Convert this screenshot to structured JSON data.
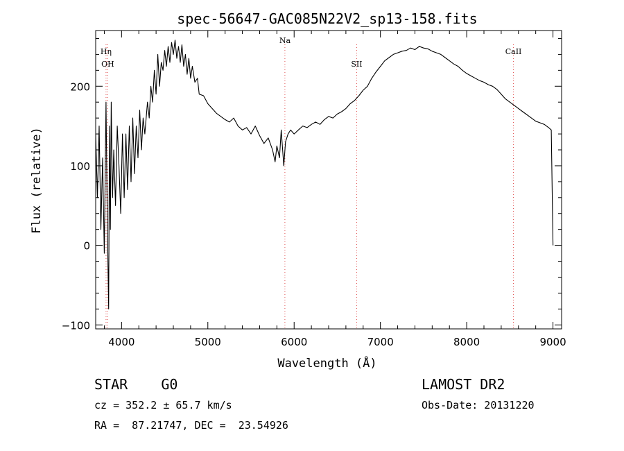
{
  "chart_data": {
    "type": "line",
    "title": "spec-56647-GAC085N22V2_sp13-158.fits",
    "xlabel": "Wavelength (Å)",
    "ylabel": "Flux (relative)",
    "xlim": [
      3700,
      9100
    ],
    "ylim": [
      -105,
      270
    ],
    "xticks": [
      4000,
      5000,
      6000,
      7000,
      8000,
      9000
    ],
    "xtick_labels": [
      "4000",
      "5000",
      "6000",
      "7000",
      "8000",
      "9000"
    ],
    "yticks": [
      -100,
      0,
      100,
      200
    ],
    "ytick_labels": [
      "−100",
      "0",
      "100",
      "200"
    ],
    "grid": false,
    "series": [
      {
        "points": [
          [
            3700,
            140
          ],
          [
            3720,
            60
          ],
          [
            3740,
            150
          ],
          [
            3760,
            20
          ],
          [
            3780,
            110
          ],
          [
            3800,
            -10
          ],
          [
            3820,
            180
          ],
          [
            3835,
            30
          ],
          [
            3850,
            -80
          ],
          [
            3860,
            150
          ],
          [
            3870,
            20
          ],
          [
            3880,
            180
          ],
          [
            3895,
            60
          ],
          [
            3910,
            120
          ],
          [
            3930,
            50
          ],
          [
            3950,
            150
          ],
          [
            3970,
            100
          ],
          [
            3990,
            40
          ],
          [
            4010,
            140
          ],
          [
            4030,
            60
          ],
          [
            4050,
            140
          ],
          [
            4070,
            70
          ],
          [
            4090,
            150
          ],
          [
            4110,
            80
          ],
          [
            4130,
            160
          ],
          [
            4150,
            90
          ],
          [
            4170,
            150
          ],
          [
            4190,
            110
          ],
          [
            4210,
            170
          ],
          [
            4230,
            120
          ],
          [
            4250,
            160
          ],
          [
            4270,
            140
          ],
          [
            4300,
            180
          ],
          [
            4320,
            160
          ],
          [
            4340,
            200
          ],
          [
            4360,
            180
          ],
          [
            4380,
            220
          ],
          [
            4400,
            190
          ],
          [
            4420,
            240
          ],
          [
            4440,
            200
          ],
          [
            4460,
            230
          ],
          [
            4480,
            220
          ],
          [
            4500,
            245
          ],
          [
            4520,
            225
          ],
          [
            4540,
            250
          ],
          [
            4560,
            230
          ],
          [
            4580,
            255
          ],
          [
            4600,
            240
          ],
          [
            4620,
            258
          ],
          [
            4640,
            235
          ],
          [
            4660,
            250
          ],
          [
            4680,
            230
          ],
          [
            4700,
            252
          ],
          [
            4720,
            225
          ],
          [
            4740,
            240
          ],
          [
            4760,
            215
          ],
          [
            4780,
            235
          ],
          [
            4800,
            210
          ],
          [
            4820,
            225
          ],
          [
            4850,
            205
          ],
          [
            4880,
            210
          ],
          [
            4900,
            190
          ],
          [
            4950,
            188
          ],
          [
            5000,
            178
          ],
          [
            5050,
            172
          ],
          [
            5100,
            166
          ],
          [
            5150,
            162
          ],
          [
            5200,
            158
          ],
          [
            5250,
            155
          ],
          [
            5300,
            160
          ],
          [
            5350,
            150
          ],
          [
            5400,
            145
          ],
          [
            5450,
            148
          ],
          [
            5500,
            140
          ],
          [
            5550,
            150
          ],
          [
            5600,
            138
          ],
          [
            5650,
            128
          ],
          [
            5700,
            135
          ],
          [
            5750,
            120
          ],
          [
            5780,
            105
          ],
          [
            5800,
            125
          ],
          [
            5830,
            110
          ],
          [
            5850,
            145
          ],
          [
            5880,
            100
          ],
          [
            5900,
            130
          ],
          [
            5930,
            140
          ],
          [
            5960,
            145
          ],
          [
            6000,
            140
          ],
          [
            6050,
            145
          ],
          [
            6100,
            150
          ],
          [
            6150,
            148
          ],
          [
            6200,
            152
          ],
          [
            6250,
            155
          ],
          [
            6300,
            152
          ],
          [
            6350,
            158
          ],
          [
            6400,
            162
          ],
          [
            6450,
            160
          ],
          [
            6500,
            165
          ],
          [
            6550,
            168
          ],
          [
            6600,
            172
          ],
          [
            6650,
            178
          ],
          [
            6700,
            182
          ],
          [
            6750,
            188
          ],
          [
            6800,
            195
          ],
          [
            6850,
            200
          ],
          [
            6900,
            210
          ],
          [
            6950,
            218
          ],
          [
            7000,
            225
          ],
          [
            7050,
            232
          ],
          [
            7100,
            236
          ],
          [
            7150,
            240
          ],
          [
            7200,
            242
          ],
          [
            7250,
            244
          ],
          [
            7300,
            245
          ],
          [
            7350,
            248
          ],
          [
            7400,
            246
          ],
          [
            7450,
            250
          ],
          [
            7500,
            248
          ],
          [
            7550,
            247
          ],
          [
            7600,
            244
          ],
          [
            7650,
            242
          ],
          [
            7700,
            240
          ],
          [
            7750,
            236
          ],
          [
            7800,
            232
          ],
          [
            7850,
            228
          ],
          [
            7900,
            225
          ],
          [
            7950,
            220
          ],
          [
            8000,
            216
          ],
          [
            8050,
            213
          ],
          [
            8100,
            210
          ],
          [
            8150,
            207
          ],
          [
            8200,
            205
          ],
          [
            8250,
            202
          ],
          [
            8300,
            200
          ],
          [
            8350,
            196
          ],
          [
            8400,
            190
          ],
          [
            8450,
            184
          ],
          [
            8500,
            180
          ],
          [
            8550,
            176
          ],
          [
            8600,
            172
          ],
          [
            8650,
            168
          ],
          [
            8700,
            164
          ],
          [
            8750,
            160
          ],
          [
            8800,
            156
          ],
          [
            8850,
            154
          ],
          [
            8900,
            152
          ],
          [
            8950,
            148
          ],
          [
            8980,
            145
          ],
          [
            9000,
            0
          ]
        ]
      }
    ],
    "lines": [
      {
        "x": 3820,
        "label": "Hη"
      },
      {
        "x": 3840,
        "label": "OH"
      },
      {
        "x": 5893,
        "label": "Na"
      },
      {
        "x": 6725,
        "label": "SII"
      },
      {
        "x": 8542,
        "label": "CaII"
      }
    ],
    "line_color": "#000000",
    "marker_color": "#e05050"
  },
  "info": {
    "object": "STAR    G0",
    "survey": "LAMOST DR2",
    "cz": "cz = 352.2 ± 65.7 km/s",
    "obs_date": "Obs-Date: 20131220",
    "coords": "RA =  87.21747, DEC =  23.54926"
  }
}
